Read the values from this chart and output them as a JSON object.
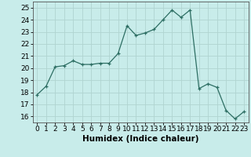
{
  "x": [
    0,
    1,
    2,
    3,
    4,
    5,
    6,
    7,
    8,
    9,
    10,
    11,
    12,
    13,
    14,
    15,
    16,
    17,
    18,
    19,
    20,
    21,
    22,
    23
  ],
  "y": [
    17.8,
    18.5,
    20.1,
    20.2,
    20.6,
    20.3,
    20.3,
    20.4,
    20.4,
    21.2,
    23.5,
    22.7,
    22.9,
    23.2,
    24.0,
    24.8,
    24.2,
    24.8,
    18.3,
    18.7,
    18.4,
    16.5,
    15.8,
    16.4
  ],
  "xlabel": "Humidex (Indice chaleur)",
  "ylim": [
    15.5,
    25.5
  ],
  "yticks": [
    16,
    17,
    18,
    19,
    20,
    21,
    22,
    23,
    24,
    25
  ],
  "xticks": [
    0,
    1,
    2,
    3,
    4,
    5,
    6,
    7,
    8,
    9,
    10,
    11,
    12,
    13,
    14,
    15,
    16,
    17,
    18,
    19,
    20,
    21,
    22,
    23
  ],
  "line_color": "#2d6e63",
  "marker": "+",
  "bg_color": "#c8ecea",
  "grid_color": "#b0d4d0",
  "label_fontsize": 7.5,
  "tick_fontsize": 6.5
}
